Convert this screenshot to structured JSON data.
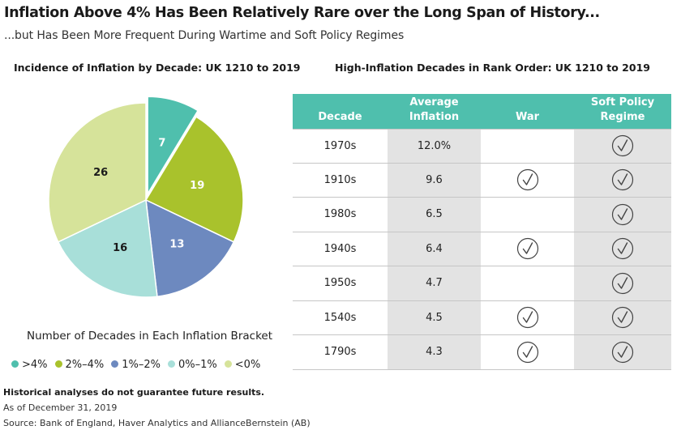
{
  "header": {
    "title": "Inflation Above 4% Has Been Relatively Rare over the Long Span of History...",
    "subtitle": "...but Has Been More Frequent During Wartime and Soft Policy Regimes"
  },
  "left_panel": {
    "heading": "Incidence of Inflation by Decade: UK 1210 to 2019",
    "caption": "Number of Decades in Each Inflation Bracket"
  },
  "right_panel": {
    "heading": "High-Inflation Decades in Rank Order: UK 1210 to 2019"
  },
  "footer": {
    "note": "Historical analyses do not guarantee future results.",
    "as_of": "As of December 31, 2019",
    "source": "Source: Bank of England, Haver Analytics and AllianceBernstein (AB)"
  },
  "chart_data": [
    {
      "type": "pie",
      "title": "Incidence of Inflation by Decade: UK 1210 to 2019",
      "caption": "Number of Decades in Each Inflation Bracket",
      "legend_position": "bottom",
      "slices": [
        {
          "label": ">4%",
          "value": 7,
          "color": "#4fbfad",
          "exploded": true
        },
        {
          "label": "2%–4%",
          "value": 19,
          "color": "#a9c22c"
        },
        {
          "label": "1%–2%",
          "value": 13,
          "color": "#6d89bf"
        },
        {
          "label": "0%–1%",
          "value": 16,
          "color": "#a8dfd9"
        },
        {
          "label": "<0%",
          "value": 26,
          "color": "#d6e39a"
        }
      ]
    },
    {
      "type": "table",
      "title": "High-Inflation Decades in Rank Order: UK 1210 to 2019",
      "columns": [
        "Decade",
        "Average\nInflation",
        "War",
        "Soft Policy\nRegime"
      ],
      "header_color": "#4fbfad",
      "rows": [
        {
          "decade": "1970s",
          "inflation": "12.0%",
          "war": false,
          "soft_policy": true
        },
        {
          "decade": "1910s",
          "inflation": "9.6",
          "war": true,
          "soft_policy": true
        },
        {
          "decade": "1980s",
          "inflation": "6.5",
          "war": false,
          "soft_policy": true
        },
        {
          "decade": "1940s",
          "inflation": "6.4",
          "war": true,
          "soft_policy": true
        },
        {
          "decade": "1950s",
          "inflation": "4.7",
          "war": false,
          "soft_policy": true
        },
        {
          "decade": "1540s",
          "inflation": "4.5",
          "war": true,
          "soft_policy": true
        },
        {
          "decade": "1790s",
          "inflation": "4.3",
          "war": true,
          "soft_policy": true
        }
      ]
    }
  ]
}
